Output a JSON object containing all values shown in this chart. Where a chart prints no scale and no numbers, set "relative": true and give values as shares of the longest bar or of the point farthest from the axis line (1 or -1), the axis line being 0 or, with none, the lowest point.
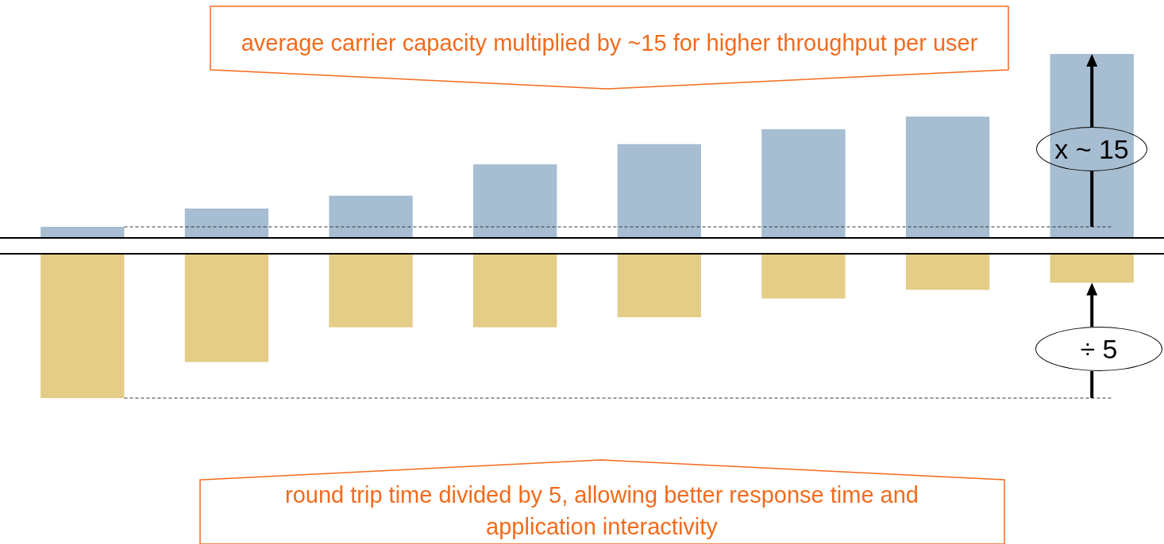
{
  "chart_data": [
    {
      "type": "bar",
      "relative": true,
      "categories": [
        null,
        null,
        null,
        null,
        null,
        null,
        null,
        null
      ],
      "values": [
        0.06,
        0.16,
        0.23,
        0.4,
        0.51,
        0.59,
        0.66,
        1
      ],
      "color": "#a7bdd1",
      "ref_lines": [
        {
          "axis": "y",
          "value": 0.06,
          "line_style": "dashed",
          "color": "#333333"
        }
      ],
      "annotations": [
        "average carrier capacity multiplied by ~15 for higher throughput per user",
        "x ~ 15"
      ]
    },
    {
      "type": "bar",
      "relative": true,
      "categories": [
        null,
        null,
        null,
        null,
        null,
        null,
        null,
        null
      ],
      "values": [
        -1,
        -0.75,
        -0.51,
        -0.51,
        -0.44,
        -0.31,
        -0.25,
        -0.2
      ],
      "color": "#e3cd87",
      "ref_lines": [
        {
          "axis": "y",
          "value": -1,
          "line_style": "dashed",
          "color": "#333333"
        }
      ],
      "annotations": [
        "round trip time divided by 5, allowing better response time and application interactivity",
        "÷ 5"
      ]
    }
  ]
}
